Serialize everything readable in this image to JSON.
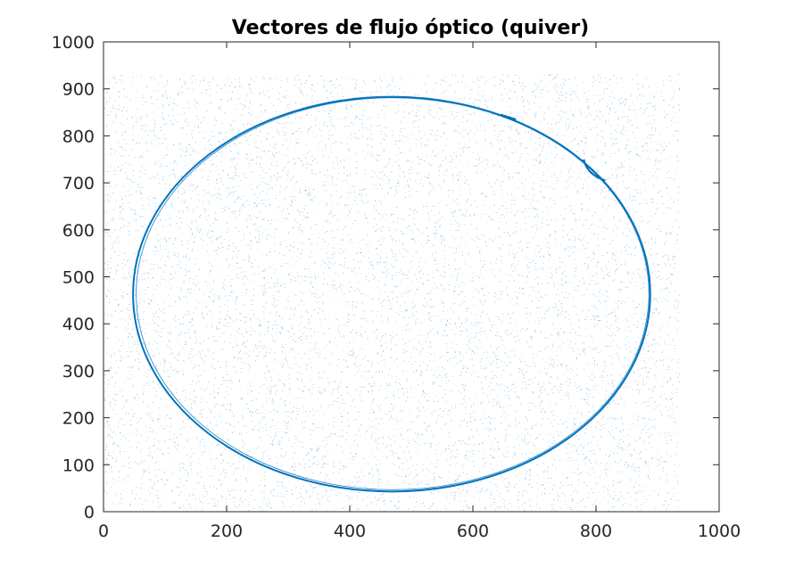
{
  "chart_data": {
    "type": "scatter",
    "title": "Vectores de flujo óptico (quiver)",
    "xlabel": "",
    "ylabel": "",
    "xlim": [
      0,
      1000
    ],
    "ylim": [
      0,
      1000
    ],
    "xticks": [
      0,
      200,
      400,
      600,
      800,
      1000
    ],
    "yticks": [
      0,
      100,
      200,
      300,
      400,
      500,
      600,
      700,
      800,
      900,
      1000
    ],
    "xtick_labels": [
      "0",
      "200",
      "400",
      "600",
      "800",
      "1000"
    ],
    "ytick_labels": [
      "0",
      "100",
      "200",
      "300",
      "400",
      "500",
      "600",
      "700",
      "800",
      "900",
      "1000"
    ],
    "grid": false,
    "box": true,
    "series_color": "#0072BD",
    "noise_field": {
      "x_range": [
        0,
        935
      ],
      "y_range": [
        0,
        930
      ],
      "description_value": "dense small quiver vectors"
    },
    "ellipse": {
      "center": [
        468,
        463
      ],
      "x_semi_axis": 420,
      "y_semi_axis": 420
    },
    "ellipse_extent": {
      "x_min": 48,
      "x_max": 888,
      "y_min": 43,
      "y_max": 884
    }
  }
}
